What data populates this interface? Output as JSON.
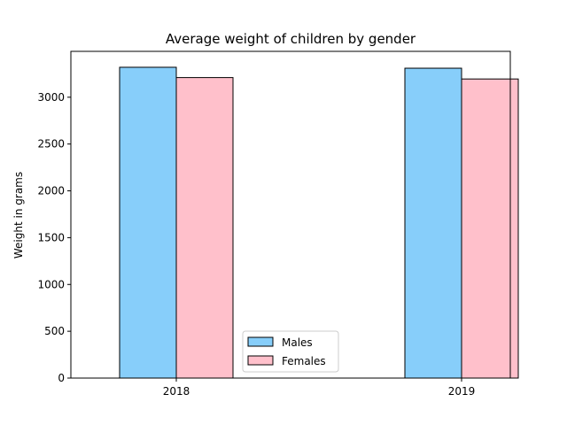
{
  "chart_data": {
    "type": "bar",
    "title": "Average weight of children by gender",
    "xlabel": "",
    "ylabel": "Weight in grams",
    "categories": [
      "2018",
      "2019"
    ],
    "series": [
      {
        "name": "Males",
        "values": [
          3320,
          3310
        ],
        "color": "#87CEFA"
      },
      {
        "name": "Females",
        "values": [
          3210,
          3195
        ],
        "color": "#FFC0CB"
      }
    ],
    "ylim": [
      0,
      3490
    ],
    "yticks": [
      0,
      500,
      1000,
      1500,
      2000,
      2500,
      3000
    ],
    "grid": false,
    "legend_position": "lower center",
    "bar_edge_color": "#000000"
  }
}
